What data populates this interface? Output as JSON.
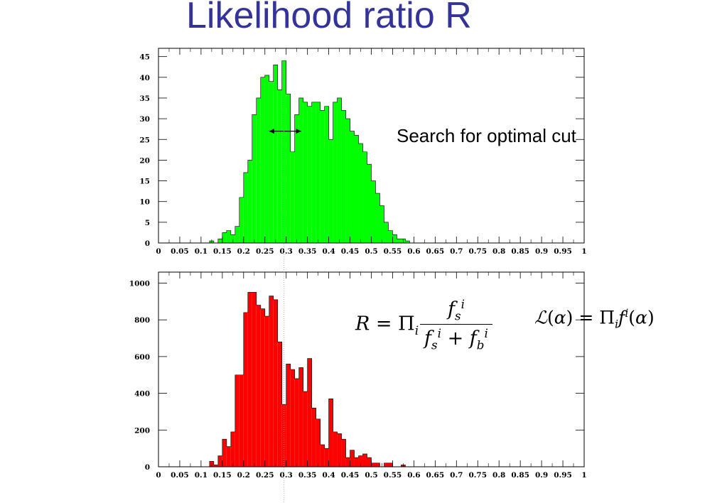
{
  "slide": {
    "title": "Likelihood ratio R",
    "annotation": "Search for optimal cut",
    "formula_ratio": "R = Π_i f_s^i / (f_s^i + f_b^i)",
    "formula_likelihood": "L(α) = Π_i f^i(α)"
  },
  "chart_data": [
    {
      "type": "bar",
      "name": "top-histogram",
      "title": "",
      "xlabel": "",
      "ylabel": "",
      "color": "#00ff00",
      "xlim": [
        0,
        1
      ],
      "ylim": [
        0,
        47
      ],
      "bin_width": 0.01,
      "xticks": [
        "0",
        "0.05",
        "0.1",
        "0.15",
        "0.2",
        "0.25",
        "0.3",
        "0.35",
        "0.4",
        "0.45",
        "0.5",
        "0.55",
        "0.6",
        "0.65",
        "0.7",
        "0.75",
        "0.8",
        "0.85",
        "0.9",
        "0.95",
        "1"
      ],
      "yticks": [
        0,
        5,
        10,
        15,
        20,
        25,
        30,
        35,
        40,
        45
      ],
      "values": [
        0,
        0,
        0,
        0,
        0,
        0,
        0,
        0,
        0,
        0,
        0,
        0,
        0.5,
        0,
        1,
        2.5,
        3,
        2,
        4,
        11,
        17,
        20,
        31,
        35,
        40,
        40.5,
        39,
        43,
        37,
        44,
        36,
        22,
        31,
        35,
        34,
        33,
        34,
        34,
        32,
        33,
        25,
        34,
        35,
        32,
        30,
        27,
        26,
        24,
        22,
        19,
        15,
        12,
        9,
        5,
        3,
        2,
        1,
        1,
        0.5,
        0,
        0,
        0,
        0,
        0,
        0,
        0,
        0,
        0,
        0,
        0,
        0,
        0,
        0,
        0,
        0,
        0,
        0,
        0,
        0,
        0,
        0,
        0,
        0,
        0,
        0,
        0,
        0,
        0,
        0,
        0,
        0,
        0,
        0,
        0,
        0,
        0,
        0,
        0,
        0,
        0
      ],
      "cut_line_x": 0.295,
      "cut_arrow": [
        0.26,
        0.335
      ],
      "cut_arrow_y": 27
    },
    {
      "type": "bar",
      "name": "bottom-histogram",
      "title": "",
      "xlabel": "",
      "ylabel": "",
      "color": "#ff0000",
      "xlim": [
        0,
        1
      ],
      "ylim": [
        0,
        1060
      ],
      "bin_width": 0.01,
      "xticks": [
        "0",
        "0.05",
        "0.1",
        "0.15",
        "0.2",
        "0.25",
        "0.3",
        "0.35",
        "0.4",
        "0.45",
        "0.5",
        "0.55",
        "0.6",
        "0.65",
        "0.7",
        "0.75",
        "0.8",
        "0.85",
        "0.9",
        "0.95",
        "1"
      ],
      "yticks": [
        0,
        200,
        400,
        600,
        800,
        1000
      ],
      "values": [
        0,
        0,
        0,
        0,
        0,
        0,
        0,
        0,
        0,
        0,
        0,
        0,
        30,
        10,
        60,
        150,
        110,
        190,
        500,
        500,
        840,
        950,
        950,
        880,
        860,
        820,
        930,
        910,
        680,
        340,
        560,
        530,
        480,
        540,
        410,
        590,
        320,
        260,
        120,
        100,
        370,
        190,
        180,
        150,
        50,
        90,
        50,
        60,
        70,
        50,
        20,
        20,
        0,
        20,
        20,
        0,
        0,
        10,
        0,
        0,
        0,
        0,
        0,
        0,
        0,
        0,
        0,
        0,
        0,
        0,
        0,
        0,
        0,
        0,
        0,
        0,
        0,
        0,
        0,
        0,
        0,
        0,
        0,
        0,
        0,
        0,
        0,
        0,
        0,
        0,
        0,
        0,
        0,
        0,
        0,
        0,
        0,
        0,
        0,
        0
      ],
      "cut_line_x": 0.295
    }
  ]
}
